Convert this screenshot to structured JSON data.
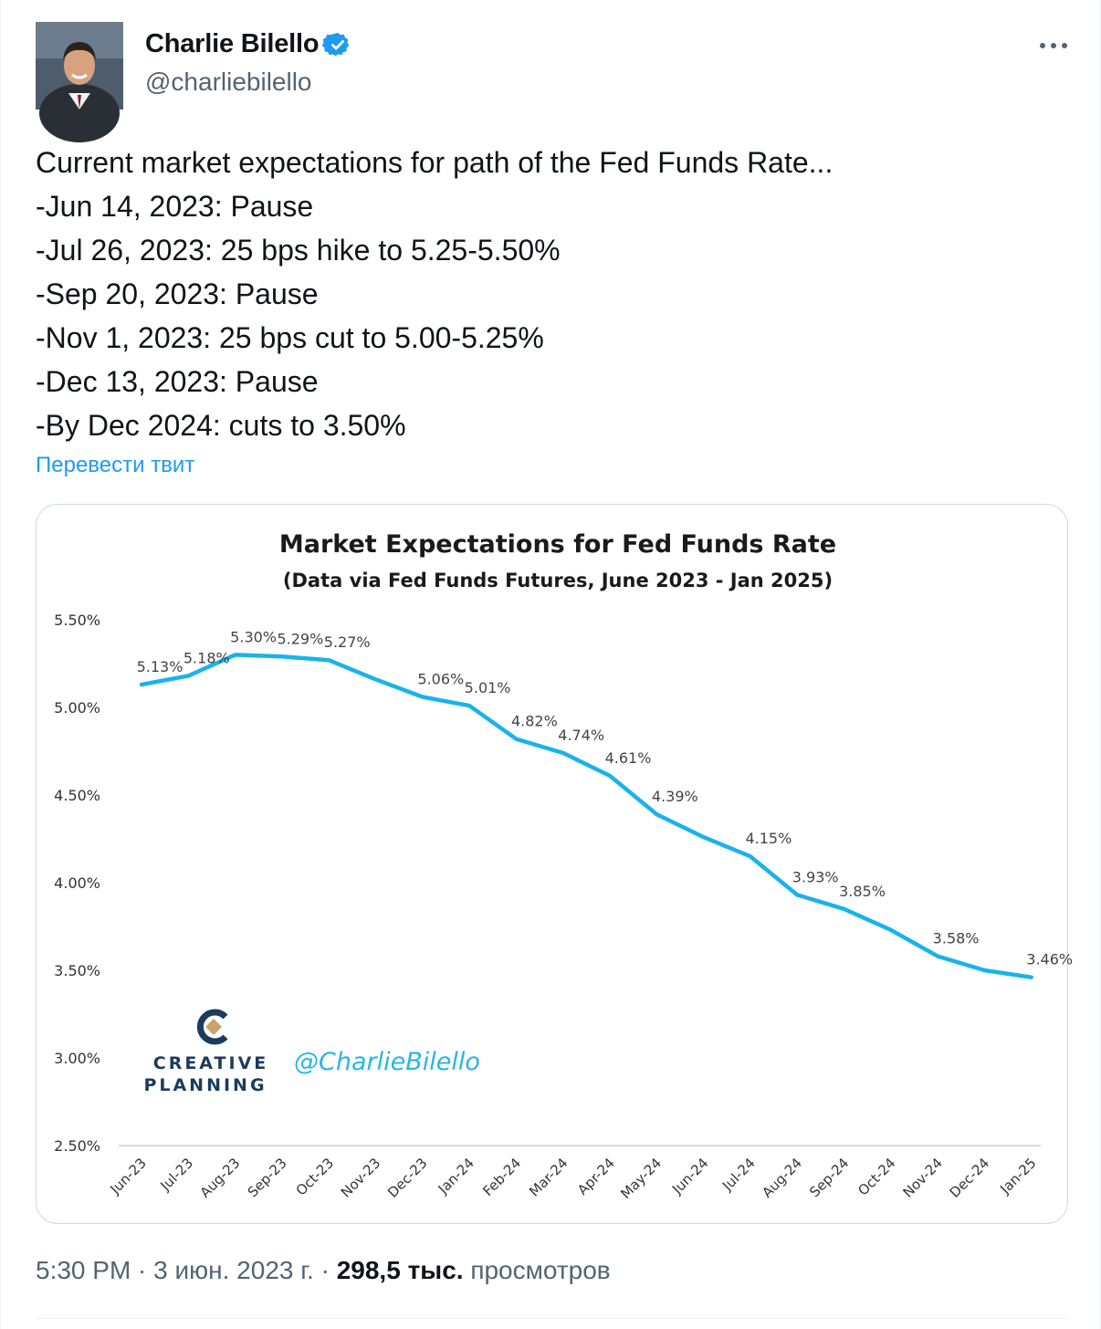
{
  "author": {
    "name": "Charlie Bilello",
    "handle": "@charliebilello",
    "verified": true
  },
  "tweet": {
    "lines": [
      "Current market expectations for path of the Fed Funds Rate...",
      "-Jun 14, 2023: Pause",
      "-Jul 26, 2023: 25 bps hike to 5.25-5.50%",
      "-Sep 20, 2023: Pause",
      "-Nov 1, 2023: 25 bps cut to 5.00-5.25%",
      "-Dec 13, 2023: Pause",
      "-By Dec 2024: cuts to 3.50%"
    ],
    "translate_label": "Перевести твит"
  },
  "meta": {
    "time": "5:30 PM",
    "sep1": " · ",
    "date": "3 июн. 2023 г.",
    "sep2": " · ",
    "views_count": "298,5 тыс.",
    "views_label": " просмотров"
  },
  "colors": {
    "line": "#1ab2ec",
    "link": "#1d9bf0",
    "logo_navy": "#1b3b5c",
    "logo_gold": "#c9a36b",
    "watermark": "#29b5e8"
  },
  "chart_data": {
    "type": "line",
    "title": "Market Expectations for Fed Funds Rate",
    "subtitle": "(Data via Fed Funds Futures, June 2023 - Jan 2025)",
    "categories": [
      "Jun-23",
      "Jul-23",
      "Aug-23",
      "Sep-23",
      "Oct-23",
      "Nov-23",
      "Dec-23",
      "Jan-24",
      "Feb-24",
      "Mar-24",
      "Apr-24",
      "May-24",
      "Jun-24",
      "Jul-24",
      "Aug-24",
      "Sep-24",
      "Oct-24",
      "Nov-24",
      "Dec-24",
      "Jan-25"
    ],
    "values": [
      5.13,
      5.18,
      5.3,
      5.29,
      5.27,
      5.16,
      5.06,
      5.01,
      4.82,
      4.74,
      4.61,
      4.39,
      4.26,
      4.15,
      3.93,
      3.85,
      3.73,
      3.58,
      3.5,
      3.46
    ],
    "data_labels": [
      "5.13%",
      "5.18%",
      "5.30%",
      "5.29%",
      "5.27%",
      "",
      "5.06%",
      "5.01%",
      "4.82%",
      "4.74%",
      "4.61%",
      "4.39%",
      "",
      "4.15%",
      "3.93%",
      "3.85%",
      "",
      "3.58%",
      "",
      "3.46%"
    ],
    "ylim": [
      2.5,
      5.5
    ],
    "yticks": [
      5.5,
      5.0,
      4.5,
      4.0,
      3.5,
      3.0,
      2.5
    ],
    "ytick_labels": [
      "5.50%",
      "5.00%",
      "4.50%",
      "4.00%",
      "3.50%",
      "3.00%",
      "2.50%"
    ],
    "xlabel": "",
    "ylabel": "",
    "grid": false,
    "logo_line1": "CREATIVE",
    "logo_line2": "PLANNING",
    "watermark": "@CharlieBilello"
  }
}
